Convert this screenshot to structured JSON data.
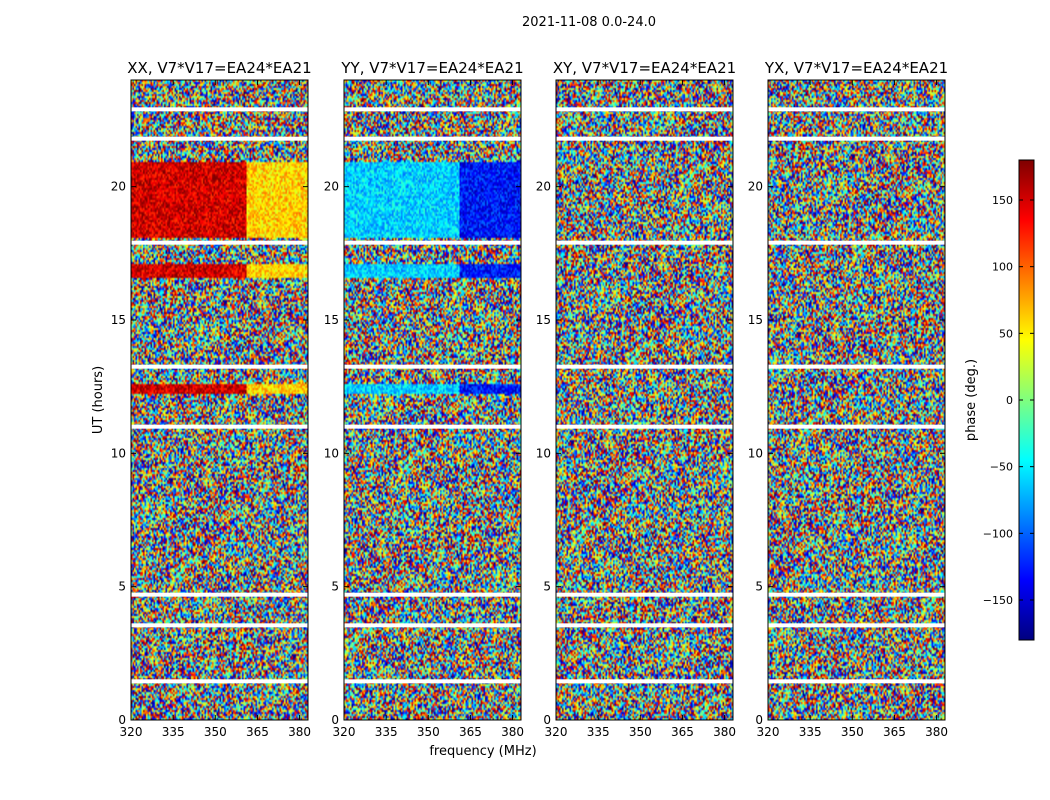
{
  "figure": {
    "suptitle": "2021-11-08 0.0-24.0",
    "xlabel": "frequency (MHz)",
    "ylabel": "UT (hours)"
  },
  "colorbar": {
    "label": "phase (deg.)",
    "vmin": -180,
    "vmax": 180,
    "ticks": [
      "150",
      "100",
      "50",
      "0",
      "−50",
      "−100",
      "−150"
    ],
    "tick_values": [
      150,
      100,
      50,
      0,
      -50,
      -100,
      -150
    ],
    "colormap": "jet",
    "stops": [
      "#00007f",
      "#0000ff",
      "#007fff",
      "#00ffff",
      "#7fff7f",
      "#ffff00",
      "#ff7f00",
      "#ff0000",
      "#7f0000"
    ]
  },
  "chart_data": {
    "type": "heatmap",
    "x_range": [
      320,
      383
    ],
    "y_range": [
      0,
      24
    ],
    "x_tick_values": [
      320,
      335,
      350,
      365,
      380
    ],
    "x_tick_labels": [
      "320",
      "335",
      "350",
      "365",
      "380"
    ],
    "y_tick_values": [
      0,
      5,
      10,
      15,
      20
    ],
    "y_tick_labels": [
      "0",
      "5",
      "10",
      "15",
      "20"
    ],
    "flagged_ut_hours": [
      1.45,
      3.55,
      4.7,
      11.0,
      13.25,
      17.9,
      21.8,
      22.9
    ],
    "panels": [
      {
        "title": "XX, V7*V17=EA24*EA21",
        "coherent_phase_deg": 150,
        "split_freq_mhz": 361,
        "phase_after_split_deg": 60
      },
      {
        "title": "YY, V7*V17=EA24*EA21",
        "coherent_phase_deg": -60,
        "split_freq_mhz": 361,
        "phase_after_split_deg": -130
      },
      {
        "title": "XY, V7*V17=EA24*EA21",
        "coherent_phase_deg": null,
        "split_freq_mhz": null,
        "phase_after_split_deg": null
      },
      {
        "title": "YX, V7*V17=EA24*EA21",
        "coherent_phase_deg": null,
        "split_freq_mhz": null,
        "phase_after_split_deg": null
      }
    ]
  }
}
